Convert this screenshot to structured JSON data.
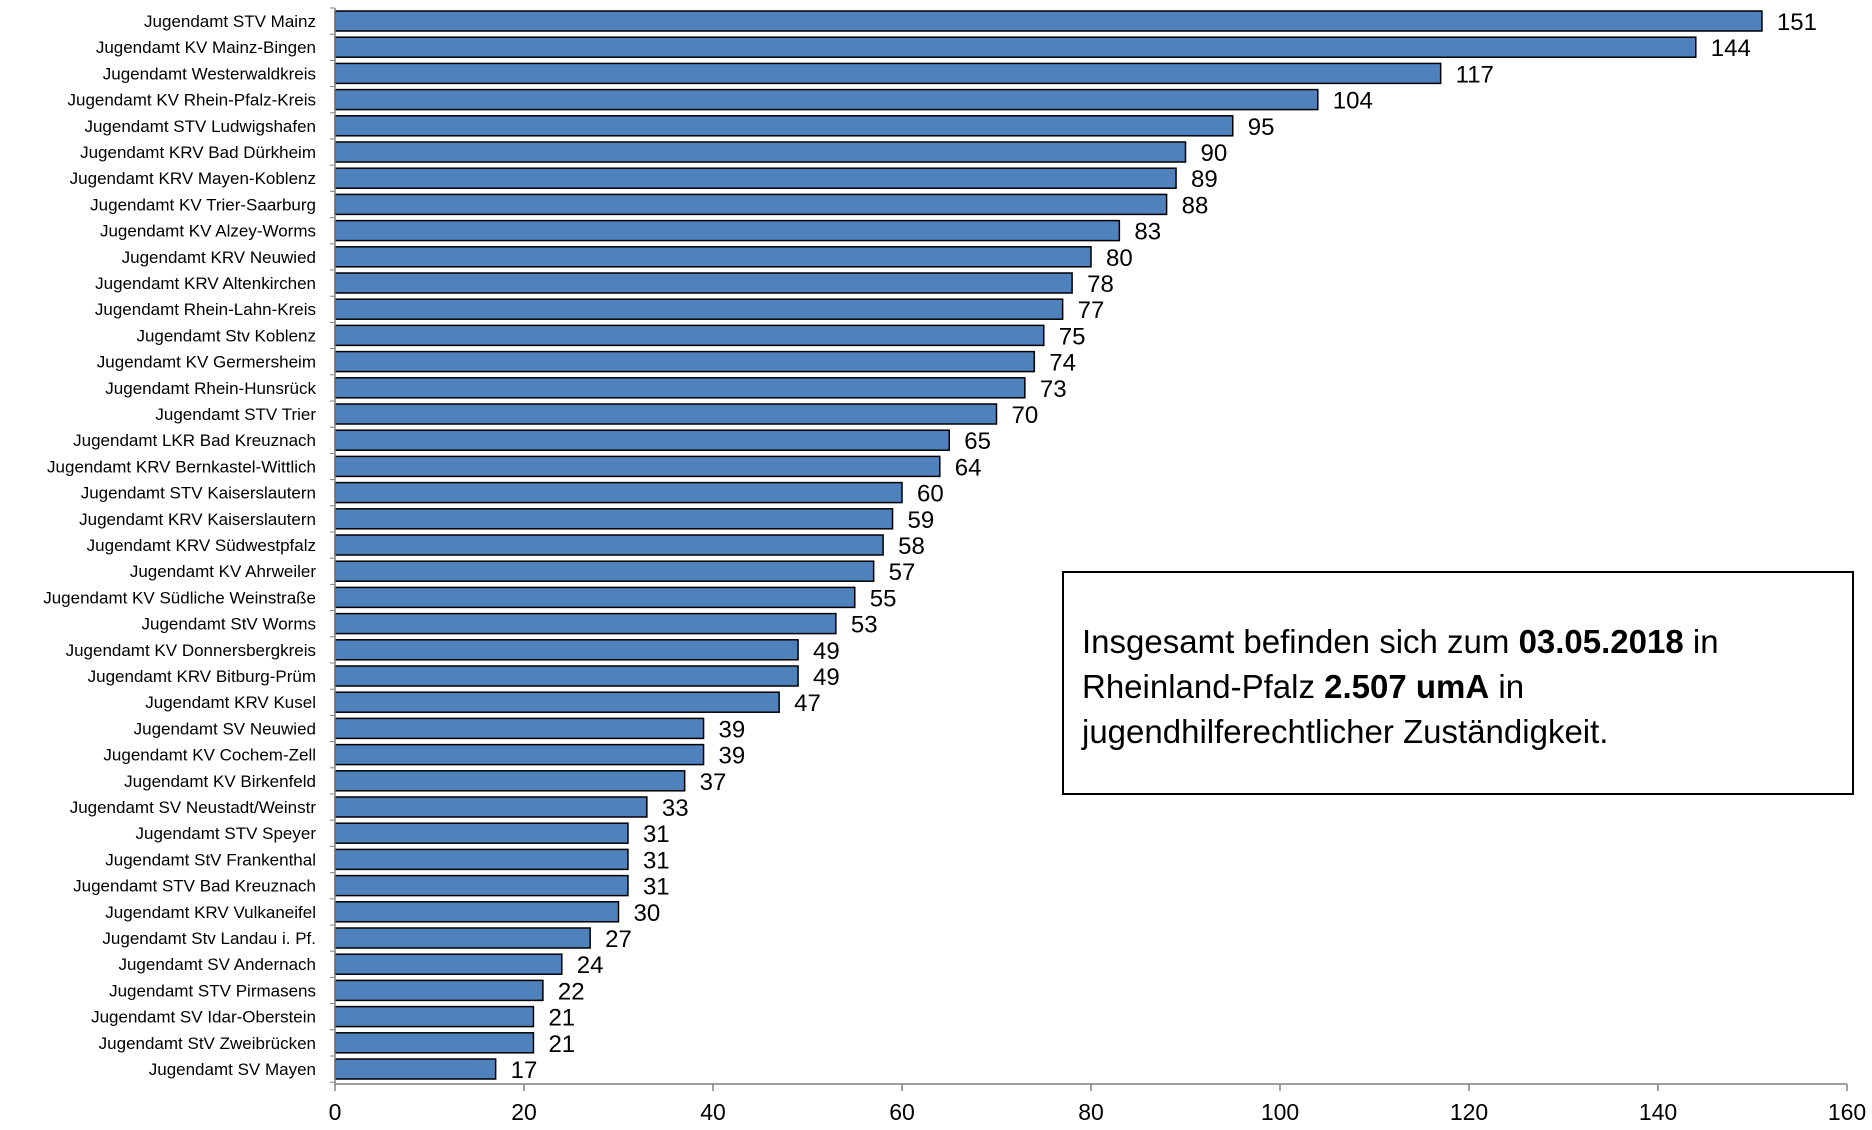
{
  "chart_data": {
    "type": "bar",
    "orientation": "horizontal",
    "categories": [
      "Jugendamt STV Mainz",
      "Jugendamt KV Mainz-Bingen",
      "Jugendamt Westerwaldkreis",
      "Jugendamt KV Rhein-Pfalz-Kreis",
      "Jugendamt STV Ludwigshafen",
      "Jugendamt KRV Bad Dürkheim",
      "Jugendamt KRV Mayen-Koblenz",
      "Jugendamt KV Trier-Saarburg",
      "Jugendamt KV Alzey-Worms",
      "Jugendamt KRV Neuwied",
      "Jugendamt KRV Altenkirchen",
      "Jugendamt Rhein-Lahn-Kreis",
      "Jugendamt Stv Koblenz",
      "Jugendamt KV Germersheim",
      "Jugendamt Rhein-Hunsrück",
      "Jugendamt STV Trier",
      "Jugendamt LKR Bad Kreuznach",
      "Jugendamt KRV Bernkastel-Wittlich",
      "Jugendamt STV Kaiserslautern",
      "Jugendamt KRV Kaiserslautern",
      "Jugendamt KRV Südwestpfalz",
      "Jugendamt KV Ahrweiler",
      "Jugendamt KV Südliche Weinstraße",
      "Jugendamt StV Worms",
      "Jugendamt KV Donnersbergkreis",
      "Jugendamt KRV Bitburg-Prüm",
      "Jugendamt KRV Kusel",
      "Jugendamt SV Neuwied",
      "Jugendamt KV Cochem-Zell",
      "Jugendamt KV Birkenfeld",
      "Jugendamt SV Neustadt/Weinstr",
      "Jugendamt STV Speyer",
      "Jugendamt StV Frankenthal",
      "Jugendamt STV Bad Kreuznach",
      "Jugendamt KRV Vulkaneifel",
      "Jugendamt Stv Landau i. Pf.",
      "Jugendamt SV Andernach",
      "Jugendamt STV Pirmasens",
      "Jugendamt SV Idar-Oberstein",
      "Jugendamt StV Zweibrücken",
      "Jugendamt SV Mayen"
    ],
    "values": [
      151,
      144,
      117,
      104,
      95,
      90,
      89,
      88,
      83,
      80,
      78,
      77,
      75,
      74,
      73,
      70,
      65,
      64,
      60,
      59,
      58,
      57,
      55,
      53,
      49,
      49,
      47,
      39,
      39,
      37,
      33,
      31,
      31,
      31,
      30,
      27,
      24,
      22,
      21,
      21,
      17
    ],
    "xlim": [
      0,
      160
    ],
    "xticks": [
      0,
      20,
      40,
      60,
      80,
      100,
      120,
      140,
      160
    ],
    "grid": false,
    "bar_color": "#4f81bd",
    "bar_edge_color": "#000000",
    "show_value_labels": true,
    "title": "",
    "xlabel": "",
    "ylabel": ""
  },
  "note": {
    "part1": "Insgesamt befinden sich zum ",
    "date": "03.05.2018",
    "part2": " in Rheinland-Pfalz ",
    "count": "2.507 umA",
    "part3": " in jugendhilferechtlicher Zuständigkeit."
  }
}
